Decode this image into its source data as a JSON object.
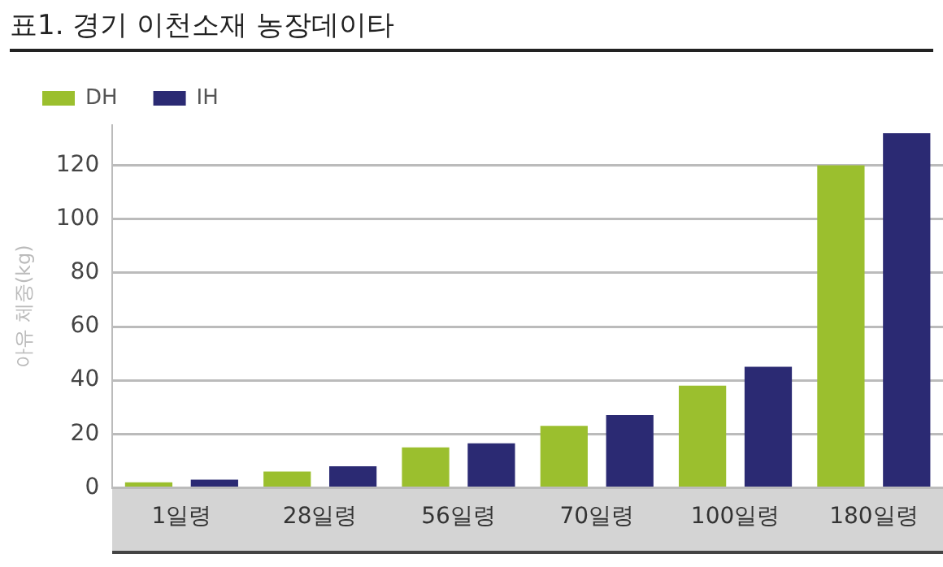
{
  "chart_data": {
    "type": "bar",
    "title": "표1. 경기 이천소재 농장데이타",
    "ylabel": "아유 체중(kg)",
    "categories": [
      "1일령",
      "28일령",
      "56일령",
      "70일령",
      "100일령",
      "180일령"
    ],
    "series": [
      {
        "name": "DH",
        "color": "#9bbf2e",
        "values": [
          2,
          6,
          15,
          23,
          38,
          120
        ]
      },
      {
        "name": "IH",
        "color": "#2b2a73",
        "values": [
          3,
          8,
          16.5,
          27,
          45,
          132
        ]
      }
    ],
    "ylim": [
      0,
      135
    ],
    "yticks": [
      0,
      20,
      40,
      60,
      80,
      100,
      120
    ],
    "grid": "y",
    "legend": "top left"
  }
}
